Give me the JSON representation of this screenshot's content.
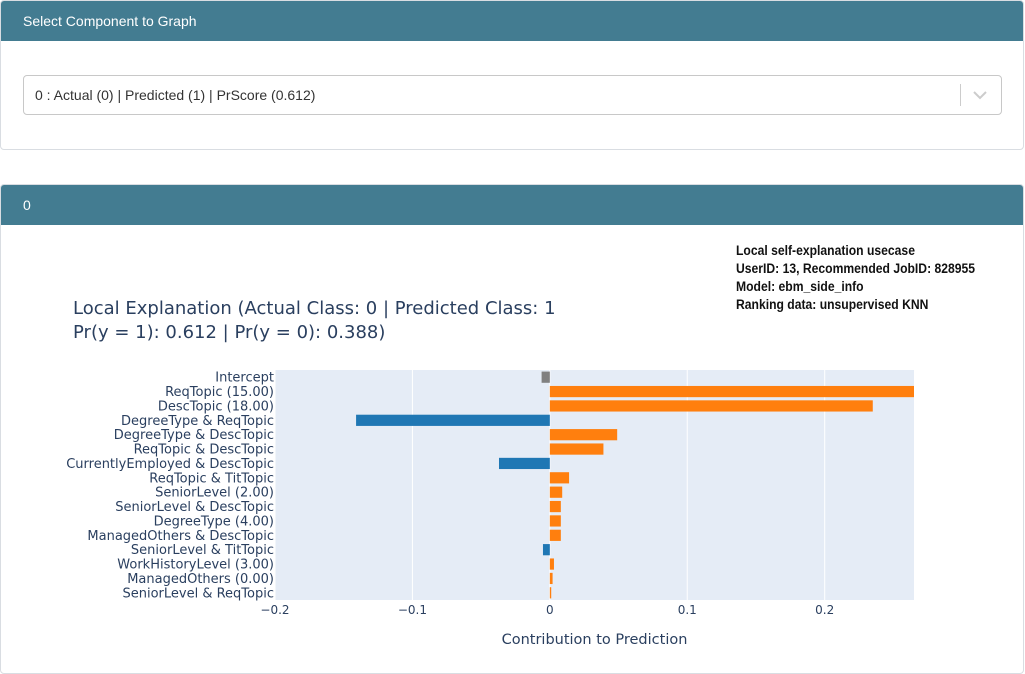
{
  "component_panel": {
    "header": "Select Component to Graph",
    "selected_value": "0 : Actual (0) | Predicted (1) | PrScore (0.612)"
  },
  "graph_panel": {
    "header": "0",
    "annotation": [
      "Local self-explanation usecase",
      "UserID: 13, Recommended JobID: 828955",
      "Model: ebm_side_info",
      "Ranking data: unsupervised KNN"
    ]
  },
  "chart_data": {
    "type": "bar",
    "orientation": "horizontal",
    "title_line1": "Local Explanation (Actual Class: 0 | Predicted Class: 1",
    "title_line2": "Pr(y = 1): 0.612 | Pr(y = 0): 0.388)",
    "xlabel": "Contribution to Prediction",
    "ylabel": "",
    "xlim": [
      -0.2,
      0.265
    ],
    "xticks": [
      -0.2,
      -0.1,
      0,
      0.1,
      0.2
    ],
    "xtick_labels": [
      "−0.2",
      "−0.1",
      "0",
      "0.1",
      "0.2"
    ],
    "grid": true,
    "colors": {
      "positive": "#ff7f0e",
      "negative": "#1f77b4",
      "intercept": "#808080",
      "plot_bg": "#e5ecf6"
    },
    "categories": [
      "Intercept",
      "ReqTopic (15.00)",
      "DescTopic (18.00)",
      "DegreeType & ReqTopic",
      "DegreeType & DescTopic",
      "ReqTopic & DescTopic",
      "CurrentlyEmployed & DescTopic",
      "ReqTopic & TitTopic",
      "SeniorLevel (2.00)",
      "SeniorLevel & DescTopic",
      "DegreeType (4.00)",
      "ManagedOthers & DescTopic",
      "SeniorLevel & TitTopic",
      "WorkHistoryLevel (3.00)",
      "ManagedOthers (0.00)",
      "SeniorLevel & ReqTopic"
    ],
    "values": [
      -0.006,
      0.27,
      0.235,
      -0.141,
      0.049,
      0.039,
      -0.037,
      0.014,
      0.009,
      0.008,
      0.008,
      0.008,
      -0.005,
      0.003,
      0.002,
      0.001
    ]
  }
}
